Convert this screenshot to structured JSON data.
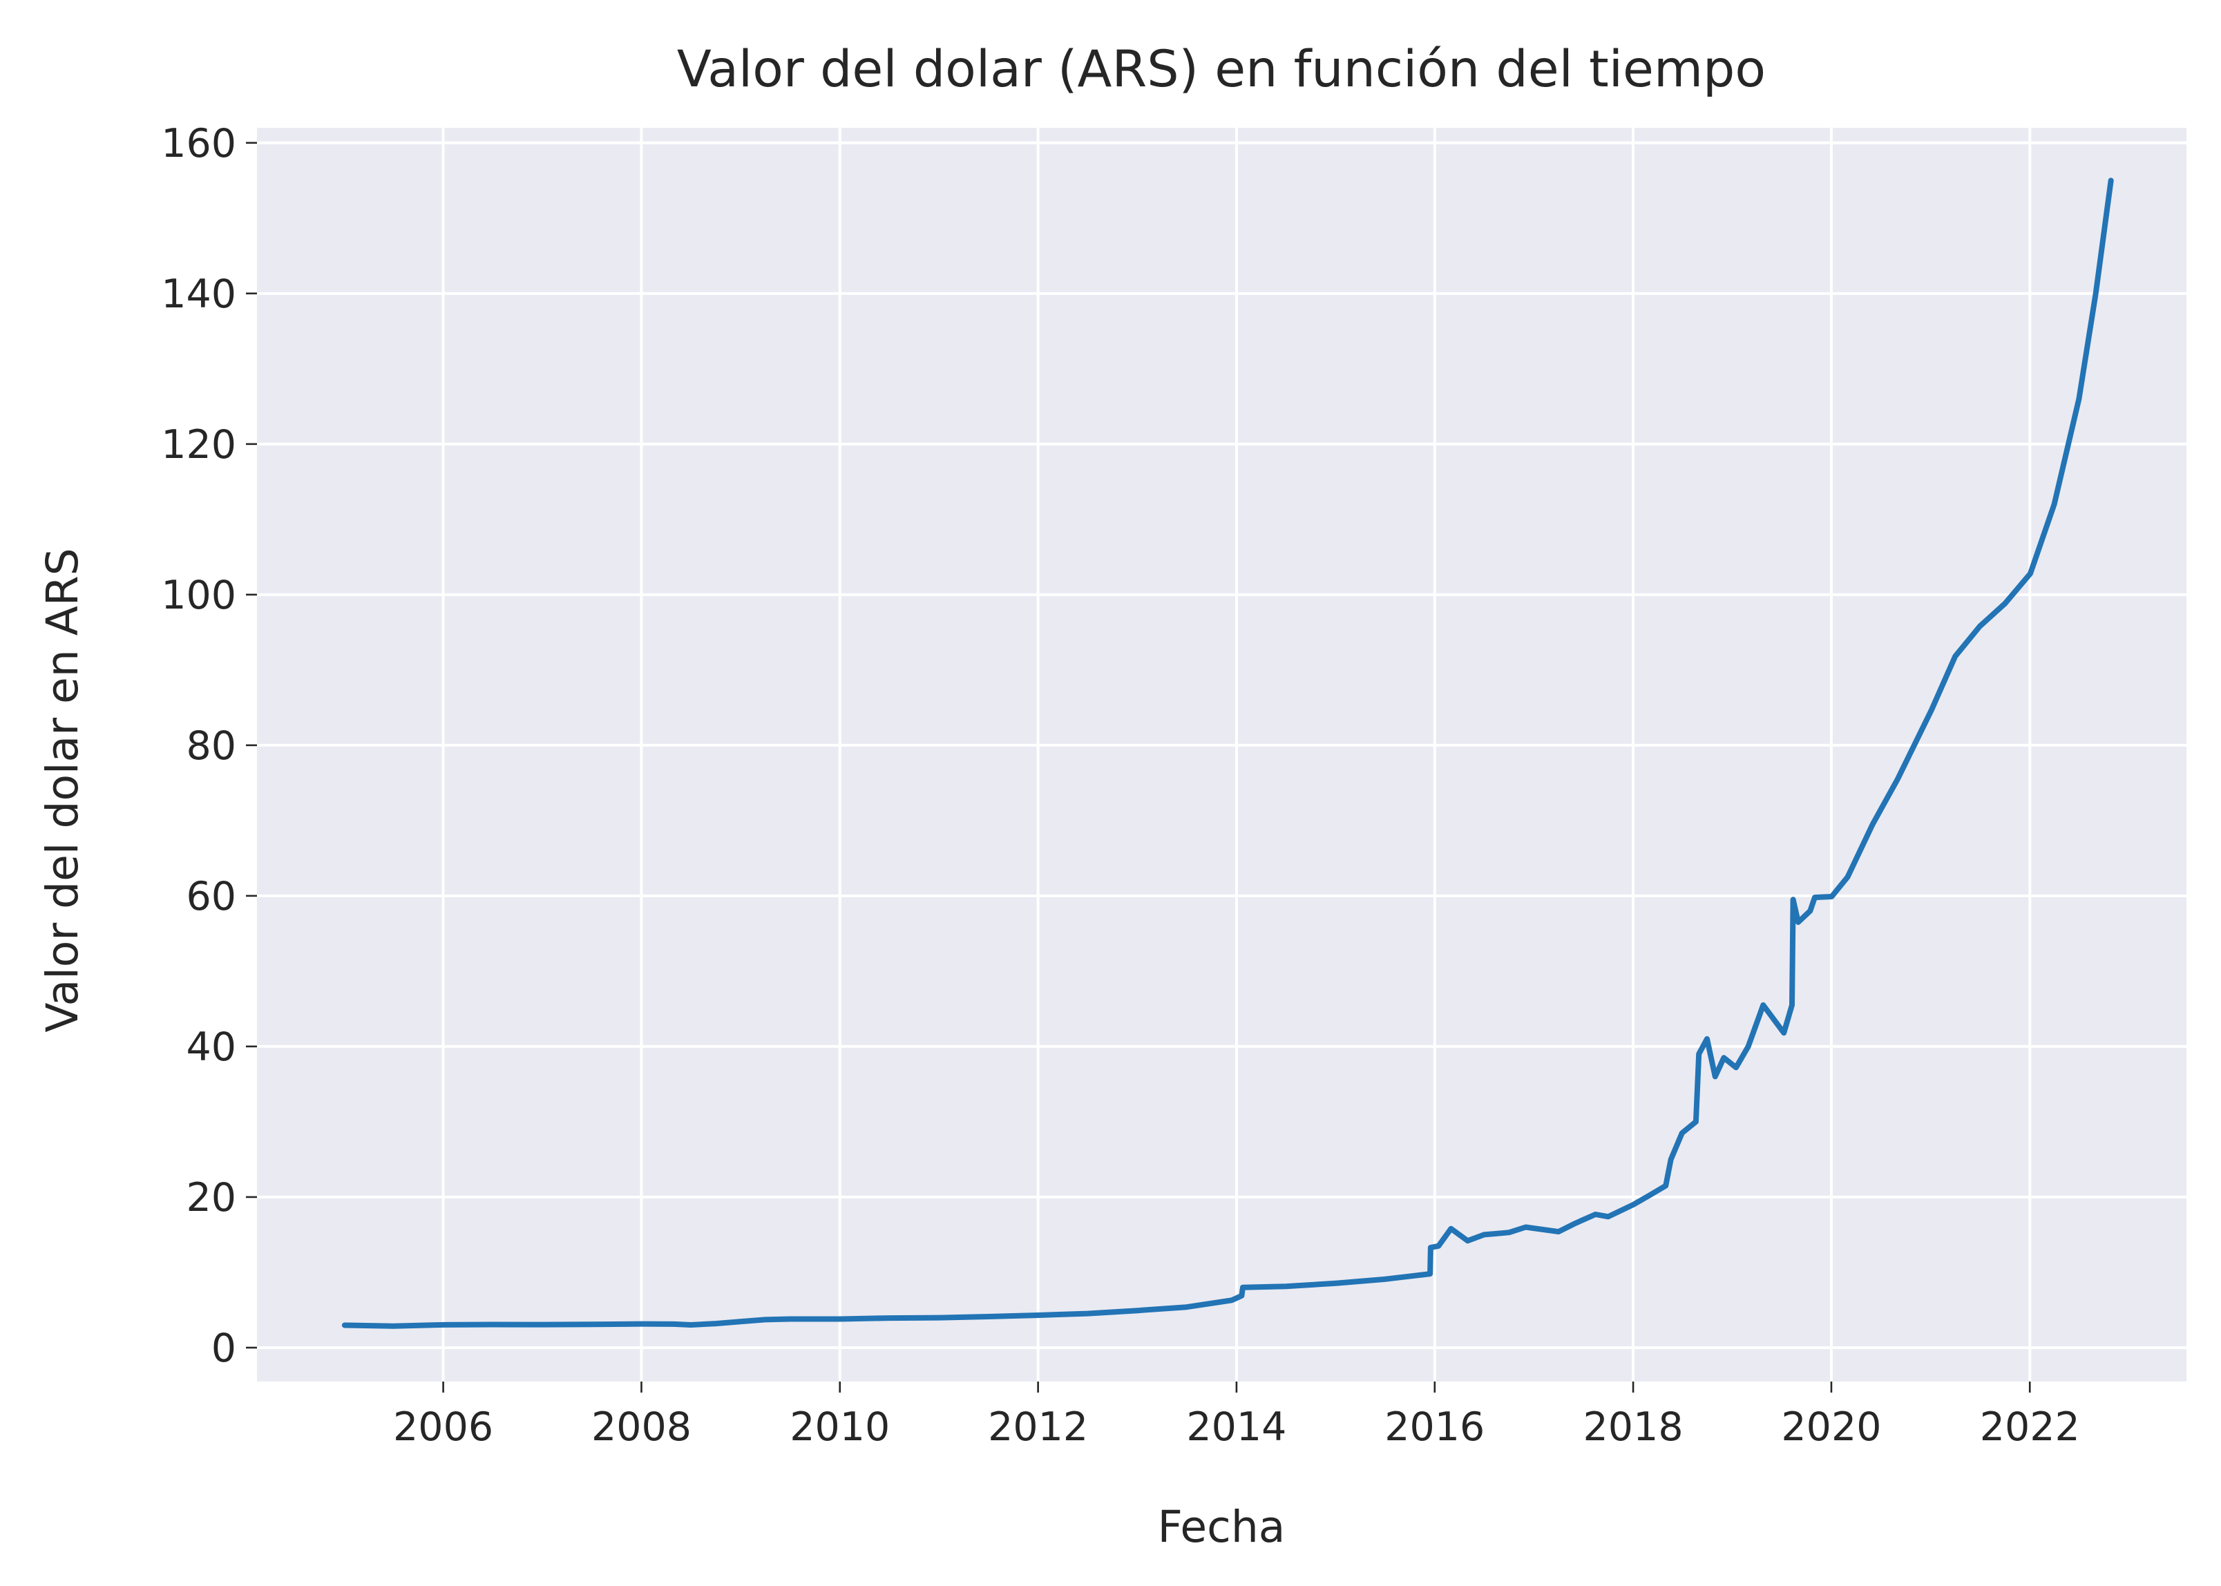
{
  "colors": {
    "background": "#ffffff",
    "plot_background": "#eaeaf2",
    "grid": "#ffffff",
    "text": "#262626",
    "series": "#2274b5"
  },
  "chart_data": {
    "type": "line",
    "title": "Valor del dolar (ARS) en función del tiempo",
    "xlabel": "Fecha",
    "ylabel": "Valor del dolar en ARS",
    "x_is_date": true,
    "xlim": [
      "2004-02-15",
      "2023-08-01"
    ],
    "ylim": [
      -4.5,
      162
    ],
    "grid": true,
    "legend": "none",
    "x_ticks": [
      {
        "value": "2006-01-01",
        "label": "2006"
      },
      {
        "value": "2008-01-01",
        "label": "2008"
      },
      {
        "value": "2010-01-01",
        "label": "2010"
      },
      {
        "value": "2012-01-01",
        "label": "2012"
      },
      {
        "value": "2014-01-01",
        "label": "2014"
      },
      {
        "value": "2016-01-01",
        "label": "2016"
      },
      {
        "value": "2018-01-01",
        "label": "2018"
      },
      {
        "value": "2020-01-01",
        "label": "2020"
      },
      {
        "value": "2022-01-01",
        "label": "2022"
      }
    ],
    "y_ticks": [
      {
        "value": 0,
        "label": "0"
      },
      {
        "value": 20,
        "label": "20"
      },
      {
        "value": 40,
        "label": "40"
      },
      {
        "value": 60,
        "label": "60"
      },
      {
        "value": 80,
        "label": "80"
      },
      {
        "value": 100,
        "label": "100"
      },
      {
        "value": 120,
        "label": "120"
      },
      {
        "value": 140,
        "label": "140"
      },
      {
        "value": 160,
        "label": "160"
      }
    ],
    "series": [
      {
        "color": "#2274b5",
        "points": [
          [
            "2005-01-03",
            2.98
          ],
          [
            "2005-07-01",
            2.87
          ],
          [
            "2006-01-02",
            3.03
          ],
          [
            "2006-07-01",
            3.07
          ],
          [
            "2007-01-02",
            3.06
          ],
          [
            "2007-07-01",
            3.09
          ],
          [
            "2008-01-02",
            3.15
          ],
          [
            "2008-05-01",
            3.12
          ],
          [
            "2008-07-01",
            3.02
          ],
          [
            "2008-10-01",
            3.2
          ],
          [
            "2009-01-02",
            3.47
          ],
          [
            "2009-04-01",
            3.72
          ],
          [
            "2009-07-01",
            3.8
          ],
          [
            "2010-01-04",
            3.8
          ],
          [
            "2010-07-01",
            3.93
          ],
          [
            "2011-01-03",
            3.98
          ],
          [
            "2011-07-01",
            4.12
          ],
          [
            "2012-01-02",
            4.31
          ],
          [
            "2012-07-01",
            4.53
          ],
          [
            "2013-01-02",
            4.93
          ],
          [
            "2013-07-01",
            5.39
          ],
          [
            "2013-12-15",
            6.3
          ],
          [
            "2014-01-20",
            6.9
          ],
          [
            "2014-01-24",
            8.0
          ],
          [
            "2014-07-01",
            8.13
          ],
          [
            "2015-01-02",
            8.55
          ],
          [
            "2015-07-01",
            9.09
          ],
          [
            "2015-12-15",
            9.8
          ],
          [
            "2015-12-17",
            13.3
          ],
          [
            "2016-01-15",
            13.5
          ],
          [
            "2016-03-01",
            15.8
          ],
          [
            "2016-05-01",
            14.2
          ],
          [
            "2016-07-01",
            15.0
          ],
          [
            "2016-10-01",
            15.3
          ],
          [
            "2016-12-01",
            16.0
          ],
          [
            "2017-04-01",
            15.4
          ],
          [
            "2017-06-01",
            16.5
          ],
          [
            "2017-08-15",
            17.7
          ],
          [
            "2017-10-01",
            17.4
          ],
          [
            "2018-01-02",
            19.0
          ],
          [
            "2018-03-01",
            20.2
          ],
          [
            "2018-05-01",
            21.5
          ],
          [
            "2018-05-20",
            25.0
          ],
          [
            "2018-06-30",
            28.5
          ],
          [
            "2018-08-20",
            30.0
          ],
          [
            "2018-08-31",
            39.0
          ],
          [
            "2018-09-30",
            41.0
          ],
          [
            "2018-10-30",
            36.0
          ],
          [
            "2018-12-01",
            38.5
          ],
          [
            "2019-01-15",
            37.2
          ],
          [
            "2019-03-01",
            40.0
          ],
          [
            "2019-04-25",
            45.5
          ],
          [
            "2019-07-10",
            41.8
          ],
          [
            "2019-08-09",
            45.5
          ],
          [
            "2019-08-13",
            59.5
          ],
          [
            "2019-09-01",
            56.5
          ],
          [
            "2019-10-15",
            58.0
          ],
          [
            "2019-11-01",
            59.8
          ],
          [
            "2020-01-02",
            59.9
          ],
          [
            "2020-03-01",
            62.5
          ],
          [
            "2020-06-01",
            69.5
          ],
          [
            "2020-09-01",
            75.5
          ],
          [
            "2021-01-04",
            84.7
          ],
          [
            "2021-04-01",
            91.8
          ],
          [
            "2021-07-01",
            95.8
          ],
          [
            "2021-10-01",
            98.8
          ],
          [
            "2022-01-03",
            102.8
          ],
          [
            "2022-04-01",
            112.0
          ],
          [
            "2022-07-01",
            126.0
          ],
          [
            "2022-09-01",
            140.0
          ],
          [
            "2022-10-27",
            155.0
          ]
        ]
      }
    ]
  }
}
